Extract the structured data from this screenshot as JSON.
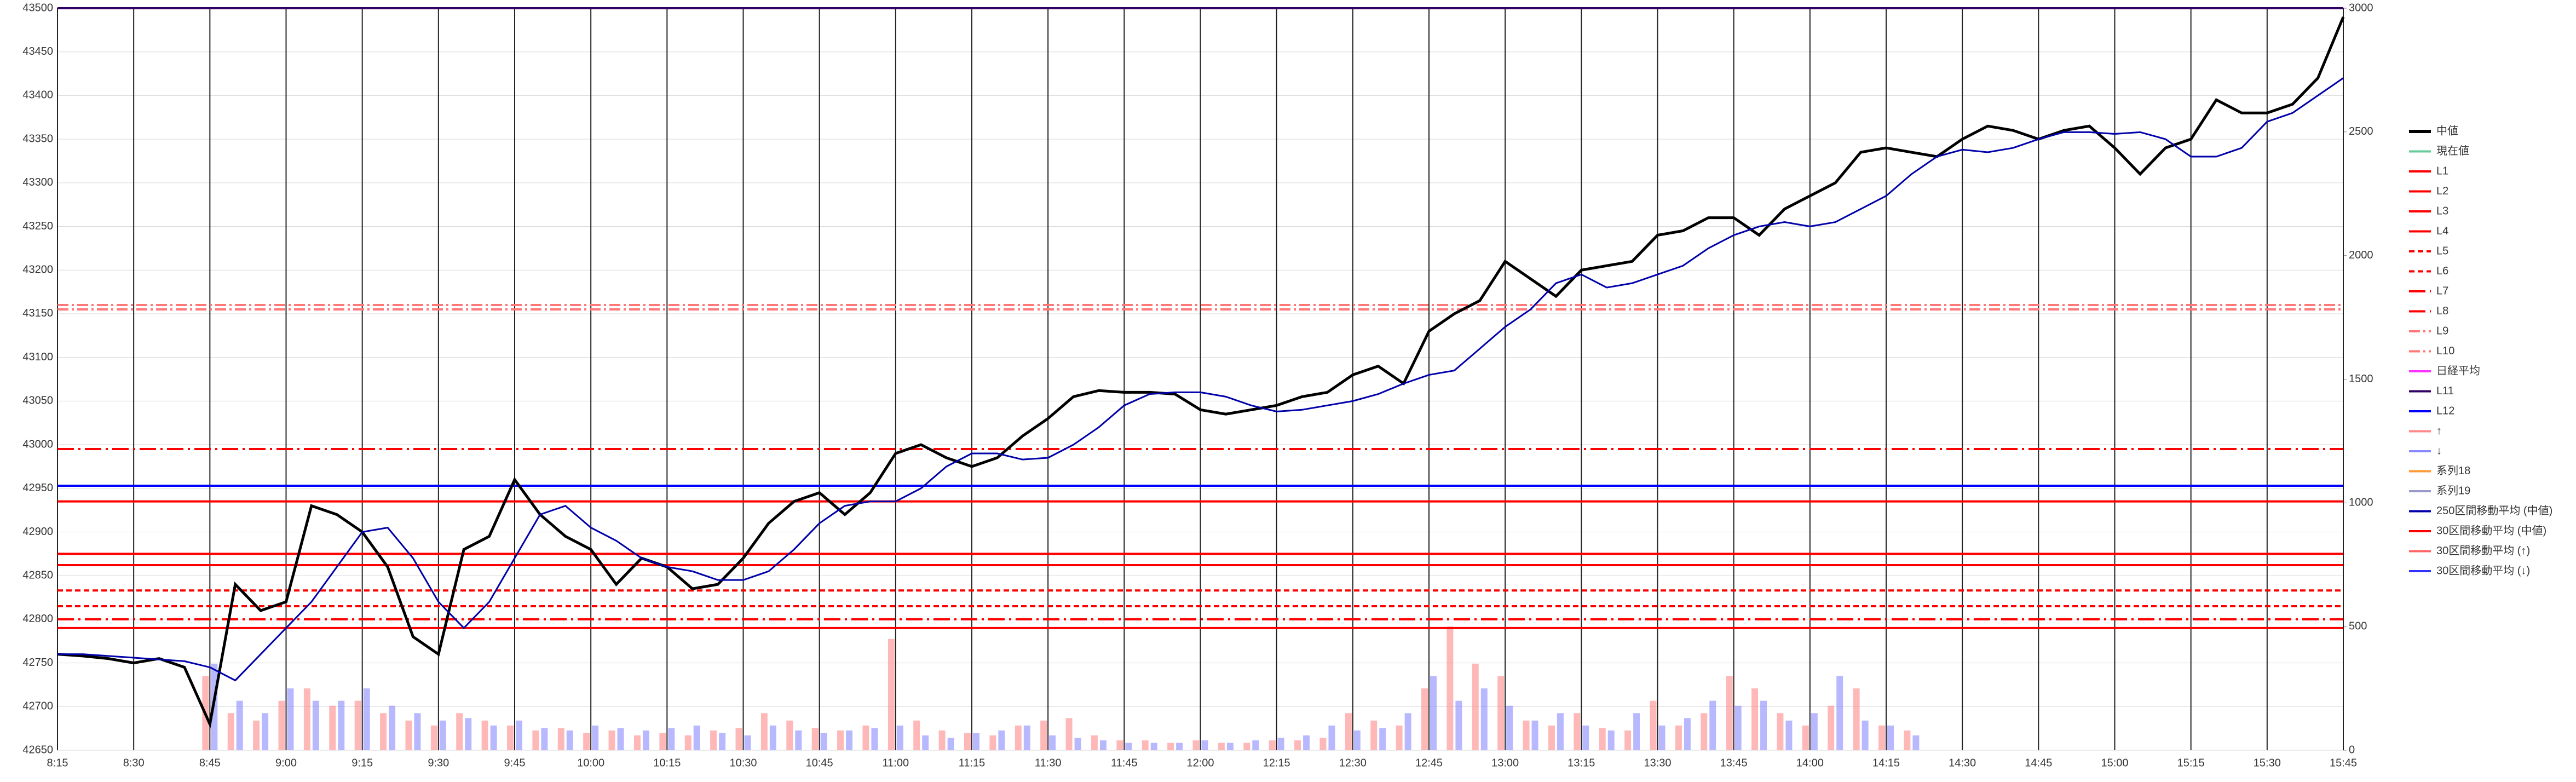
{
  "chart_data": {
    "type": "line",
    "x": [
      "8:15",
      "8:20",
      "8:25",
      "8:30",
      "8:35",
      "8:40",
      "8:45",
      "8:50",
      "8:55",
      "9:00",
      "9:05",
      "9:10",
      "9:15",
      "9:20",
      "9:25",
      "9:30",
      "9:35",
      "9:40",
      "9:45",
      "9:50",
      "9:55",
      "10:00",
      "10:05",
      "10:10",
      "10:15",
      "10:20",
      "10:25",
      "10:30",
      "10:35",
      "10:40",
      "10:45",
      "10:50",
      "10:55",
      "11:00",
      "11:05",
      "11:10",
      "11:15",
      "11:20",
      "11:25",
      "11:30",
      "11:35",
      "11:40",
      "11:45",
      "11:50",
      "11:55",
      "12:00",
      "12:05",
      "12:10",
      "12:15",
      "12:20",
      "12:25",
      "12:30",
      "12:35",
      "12:40",
      "12:45",
      "12:50",
      "12:55",
      "13:00",
      "13:05",
      "13:10",
      "13:15",
      "13:20",
      "13:25",
      "13:30",
      "13:35",
      "13:40",
      "13:45",
      "13:50",
      "13:55",
      "14:00",
      "14:05",
      "14:10",
      "14:15",
      "14:20",
      "14:25",
      "14:30",
      "14:35",
      "14:40",
      "14:45",
      "14:50",
      "14:55",
      "15:00",
      "15:05",
      "15:10",
      "15:15",
      "15:20",
      "15:25",
      "15:30",
      "15:35",
      "15:40",
      "15:45"
    ],
    "xlim": [
      "8:15",
      "15:45"
    ],
    "xticks": [
      "8:15",
      "8:30",
      "8:45",
      "9:00",
      "9:15",
      "9:30",
      "9:45",
      "10:00",
      "10:15",
      "10:30",
      "10:45",
      "11:00",
      "11:15",
      "11:30",
      "11:45",
      "12:00",
      "12:15",
      "12:30",
      "12:45",
      "13:00",
      "13:15",
      "13:30",
      "13:45",
      "14:00",
      "14:15",
      "14:30",
      "14:45",
      "15:00",
      "15:15",
      "15:30",
      "15:45"
    ],
    "ylim": [
      42650,
      43500
    ],
    "yticks": [
      42650,
      42700,
      42750,
      42800,
      42850,
      42900,
      42950,
      43000,
      43050,
      43100,
      43150,
      43200,
      43250,
      43300,
      43350,
      43400,
      43450,
      43500
    ],
    "y2lim": [
      0,
      3000
    ],
    "y2ticks": [
      0,
      500,
      1000,
      1500,
      2000,
      2500,
      3000
    ],
    "grid": true,
    "series": [
      {
        "name": "中値",
        "color": "#000000",
        "kind": "line",
        "values": [
          42760,
          42758,
          42755,
          42750,
          42755,
          42745,
          42680,
          42840,
          42810,
          42820,
          42930,
          42920,
          42900,
          42860,
          42780,
          42760,
          42880,
          42895,
          42960,
          42920,
          42895,
          42880,
          42840,
          42870,
          42860,
          42835,
          42840,
          42870,
          42910,
          42935,
          42945,
          42920,
          42945,
          42990,
          43000,
          42985,
          42975,
          42985,
          43010,
          43030,
          43055,
          43062,
          43060,
          43060,
          43058,
          43040,
          43035,
          43040,
          43045,
          43055,
          43060,
          43080,
          43090,
          43070,
          43130,
          43150,
          43165,
          43210,
          43190,
          43170,
          43200,
          43205,
          43210,
          43240,
          43245,
          43260,
          43260,
          43240,
          43270,
          43285,
          43300,
          43335,
          43340,
          43335,
          43330,
          43350,
          43365,
          43360,
          43350,
          43360,
          43365,
          43340,
          43310,
          43340,
          43350,
          43395,
          43380,
          43380,
          43390,
          43420,
          43490
        ]
      },
      {
        "name": "現在値",
        "color": "#66cc99",
        "kind": "line"
      },
      {
        "name": "L1",
        "color": "#ff0000",
        "kind": "level",
        "dash": "",
        "value": 42935
      },
      {
        "name": "L2",
        "color": "#ff0000",
        "kind": "level",
        "dash": "",
        "value": 42875
      },
      {
        "name": "L3",
        "color": "#ff0000",
        "kind": "level",
        "dash": "",
        "value": 42862
      },
      {
        "name": "L4",
        "color": "#ff0000",
        "kind": "level",
        "dash": "",
        "value": 42790
      },
      {
        "name": "L5",
        "color": "#ff0000",
        "kind": "level",
        "dash": "10 6",
        "value": 42833
      },
      {
        "name": "L6",
        "color": "#ff0000",
        "kind": "level",
        "dash": "10 6",
        "value": 42815
      },
      {
        "name": "L7",
        "color": "#ff0000",
        "kind": "level",
        "dash": "30 8 4 8",
        "value": 42995
      },
      {
        "name": "L8",
        "color": "#ff0000",
        "kind": "level",
        "dash": "30 8 4 8",
        "value": 42800
      },
      {
        "name": "L9",
        "color": "#ff7777",
        "kind": "level",
        "dash": "20 6 4 6",
        "value": 43160
      },
      {
        "name": "L10",
        "color": "#ff7777",
        "kind": "level",
        "dash": "20 6 4 6",
        "value": 43155
      },
      {
        "name": "日経平均",
        "color": "#ff33ff",
        "kind": "line"
      },
      {
        "name": "L11",
        "color": "#330066",
        "kind": "level",
        "dash": "",
        "value": 43500
      },
      {
        "name": "L12",
        "color": "#0000ff",
        "kind": "level",
        "dash": "",
        "value": 42953
      },
      {
        "name": "↑",
        "color": "#ff8888",
        "kind": "bar",
        "axis": "y2",
        "values": [
          0,
          0,
          0,
          0,
          0,
          0,
          300,
          150,
          120,
          200,
          250,
          180,
          200,
          150,
          120,
          100,
          150,
          120,
          100,
          80,
          90,
          70,
          80,
          60,
          70,
          60,
          80,
          90,
          150,
          120,
          90,
          80,
          100,
          450,
          120,
          80,
          70,
          60,
          100,
          120,
          130,
          60,
          40,
          40,
          30,
          40,
          30,
          30,
          40,
          40,
          50,
          150,
          120,
          100,
          250,
          500,
          350,
          300,
          120,
          100,
          150,
          90,
          80,
          200,
          100,
          150,
          300,
          250,
          150,
          100,
          180,
          250,
          100,
          80,
          null,
          null,
          null,
          null,
          null,
          null,
          null,
          null,
          null,
          null,
          null,
          null,
          null,
          null,
          null,
          null,
          null
        ]
      },
      {
        "name": "↓",
        "color": "#8888ff",
        "kind": "bar",
        "axis": "y2",
        "values": [
          0,
          0,
          0,
          0,
          0,
          0,
          350,
          200,
          150,
          250,
          200,
          200,
          250,
          180,
          150,
          120,
          130,
          100,
          120,
          90,
          80,
          100,
          90,
          80,
          90,
          100,
          70,
          60,
          100,
          80,
          70,
          80,
          90,
          100,
          60,
          50,
          70,
          80,
          100,
          60,
          50,
          40,
          30,
          30,
          30,
          40,
          30,
          40,
          50,
          60,
          100,
          80,
          90,
          150,
          300,
          200,
          250,
          180,
          120,
          150,
          100,
          80,
          150,
          100,
          130,
          200,
          180,
          200,
          120,
          150,
          300,
          120,
          100,
          60,
          null,
          null,
          null,
          null,
          null,
          null,
          null,
          null,
          null,
          null,
          null,
          null,
          null,
          null,
          null,
          null,
          null
        ]
      },
      {
        "name": "系列18",
        "color": "#ff9933",
        "kind": "line"
      },
      {
        "name": "系列19",
        "color": "#9999cc",
        "kind": "line"
      },
      {
        "name": "250区間移動平均 (中値)",
        "color": "#0000aa",
        "kind": "line",
        "values": [
          42760,
          42760,
          42758,
          42756,
          42754,
          42752,
          42745,
          42730,
          42760,
          42790,
          42820,
          42860,
          42900,
          42905,
          42870,
          42820,
          42790,
          42820,
          42870,
          42920,
          42930,
          42905,
          42890,
          42870,
          42860,
          42855,
          42845,
          42845,
          42855,
          42880,
          42910,
          42930,
          42935,
          42935,
          42950,
          42975,
          42990,
          42990,
          42983,
          42985,
          43000,
          43020,
          43045,
          43058,
          43060,
          43060,
          43055,
          43045,
          43038,
          43040,
          43045,
          43050,
          43058,
          43070,
          43080,
          43085,
          43110,
          43135,
          43155,
          43185,
          43195,
          43180,
          43185,
          43195,
          43205,
          43225,
          43240,
          43250,
          43255,
          43250,
          43255,
          43270,
          43285,
          43310,
          43330,
          43338,
          43335,
          43340,
          43350,
          43358,
          43358,
          43356,
          43358,
          43350,
          43330,
          43330,
          43340,
          43370,
          43380,
          43400,
          43420
        ]
      },
      {
        "name": "30区間移動平均 (中値)",
        "color": "#ff0000",
        "kind": "line"
      },
      {
        "name": "30区間移動平均 (↑)",
        "color": "#ff6666",
        "kind": "line"
      },
      {
        "name": "30区間移動平均 (↓)",
        "color": "#3333ff",
        "kind": "line"
      }
    ]
  }
}
